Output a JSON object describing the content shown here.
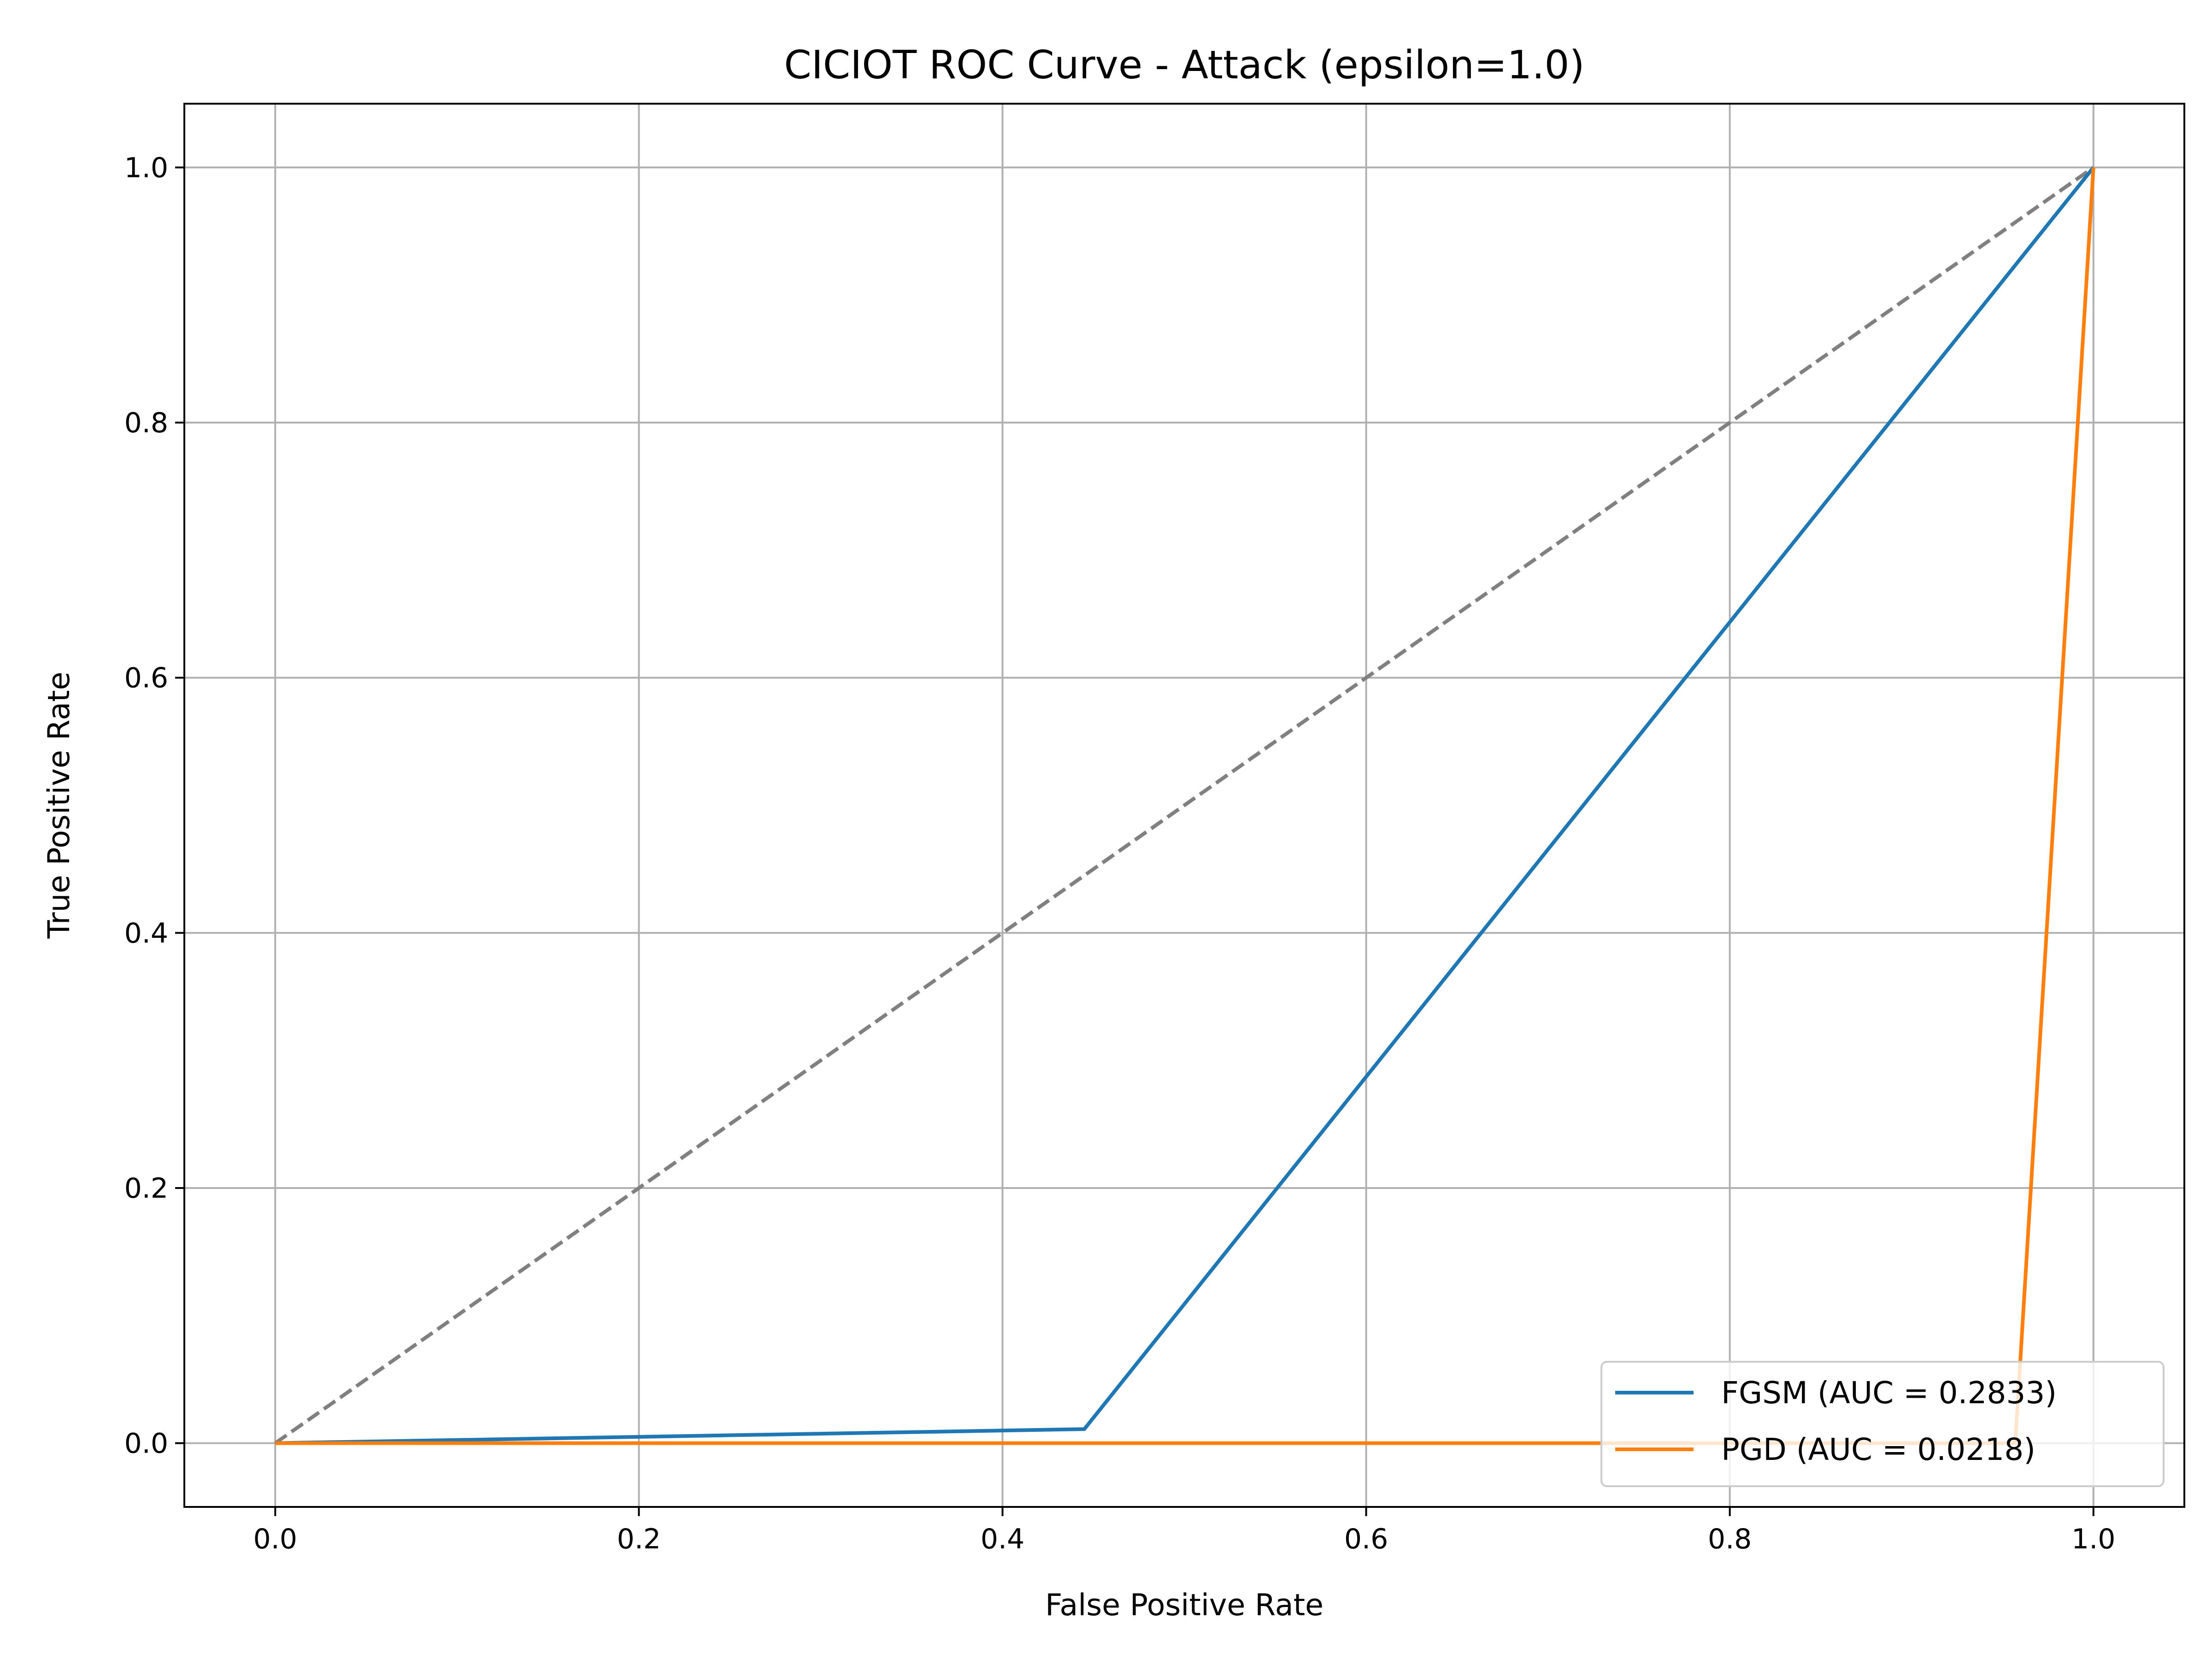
{
  "chart_data": {
    "type": "line",
    "title": "CICIOT ROC Curve - Attack (epsilon=1.0)",
    "xlabel": "False Positive Rate",
    "ylabel": "True Positive Rate",
    "xlim": [
      -0.05,
      1.05
    ],
    "ylim": [
      -0.05,
      1.05
    ],
    "xticks": [
      0.0,
      0.2,
      0.4,
      0.6,
      0.8,
      1.0
    ],
    "yticks": [
      0.0,
      0.2,
      0.4,
      0.6,
      0.8,
      1.0
    ],
    "xtick_labels": [
      "0.0",
      "0.2",
      "0.4",
      "0.6",
      "0.8",
      "1.0"
    ],
    "ytick_labels": [
      "0.0",
      "0.2",
      "0.4",
      "0.6",
      "0.8",
      "1.0"
    ],
    "grid": true,
    "legend_position": "lower right",
    "series": [
      {
        "name": "FGSM (AUC = 0.2833)",
        "color": "#1f77b4",
        "x": [
          0.0,
          0.445,
          1.0
        ],
        "y": [
          0.0,
          0.011,
          1.0
        ]
      },
      {
        "name": "PGD (AUC = 0.0218)",
        "color": "#ff7f0e",
        "x": [
          0.0,
          0.957,
          1.0
        ],
        "y": [
          0.0,
          0.0,
          1.0
        ]
      }
    ],
    "reference_line": {
      "x": [
        0.0,
        1.0
      ],
      "y": [
        0.0,
        1.0
      ],
      "color": "#808080",
      "style": "dashed"
    }
  }
}
